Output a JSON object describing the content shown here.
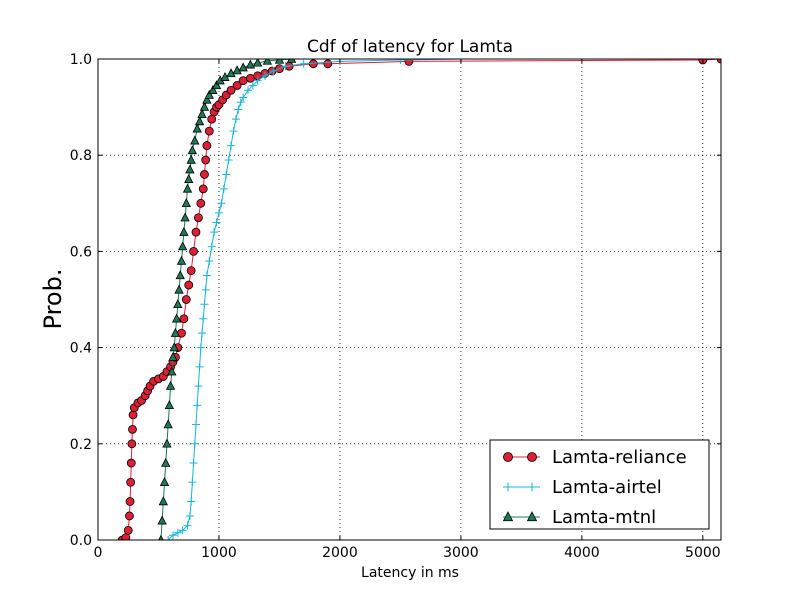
{
  "chart_data": {
    "type": "line",
    "title": "Cdf of latency for Lamta",
    "xlabel": "Latency in ms",
    "ylabel": "Prob.",
    "xlim": [
      0,
      5150
    ],
    "ylim": [
      0.0,
      1.0
    ],
    "xticks": [
      "0",
      "1000",
      "2000",
      "3000",
      "4000",
      "5000"
    ],
    "yticks": [
      "0.0",
      "0.2",
      "0.4",
      "0.6",
      "0.8",
      "1.0"
    ],
    "grid": true,
    "legend_position": "lower-right",
    "series": [
      {
        "name": "Lamta-reliance",
        "color": "#dc2035",
        "marker": "circle",
        "points": [
          [
            200,
            0.0
          ],
          [
            230,
            0.005
          ],
          [
            250,
            0.02
          ],
          [
            260,
            0.05
          ],
          [
            265,
            0.08
          ],
          [
            270,
            0.12
          ],
          [
            275,
            0.16
          ],
          [
            280,
            0.2
          ],
          [
            285,
            0.23
          ],
          [
            290,
            0.26
          ],
          [
            300,
            0.275
          ],
          [
            330,
            0.285
          ],
          [
            360,
            0.29
          ],
          [
            390,
            0.3
          ],
          [
            410,
            0.31
          ],
          [
            430,
            0.32
          ],
          [
            460,
            0.33
          ],
          [
            500,
            0.335
          ],
          [
            540,
            0.34
          ],
          [
            570,
            0.35
          ],
          [
            600,
            0.36
          ],
          [
            620,
            0.37
          ],
          [
            640,
            0.38
          ],
          [
            660,
            0.4
          ],
          [
            690,
            0.43
          ],
          [
            710,
            0.46
          ],
          [
            730,
            0.5
          ],
          [
            750,
            0.53
          ],
          [
            770,
            0.56
          ],
          [
            790,
            0.6
          ],
          [
            810,
            0.64
          ],
          [
            830,
            0.67
          ],
          [
            850,
            0.7
          ],
          [
            870,
            0.73
          ],
          [
            880,
            0.76
          ],
          [
            890,
            0.79
          ],
          [
            900,
            0.82
          ],
          [
            920,
            0.85
          ],
          [
            940,
            0.875
          ],
          [
            960,
            0.89
          ],
          [
            980,
            0.9
          ],
          [
            1000,
            0.905
          ],
          [
            1030,
            0.915
          ],
          [
            1060,
            0.925
          ],
          [
            1100,
            0.935
          ],
          [
            1150,
            0.945
          ],
          [
            1200,
            0.955
          ],
          [
            1260,
            0.96
          ],
          [
            1320,
            0.965
          ],
          [
            1380,
            0.97
          ],
          [
            1440,
            0.975
          ],
          [
            1500,
            0.98
          ],
          [
            1580,
            0.985
          ],
          [
            1780,
            0.99
          ],
          [
            1900,
            0.99
          ],
          [
            2570,
            0.995
          ],
          [
            5000,
            0.998
          ],
          [
            5150,
            1.0
          ]
        ]
      },
      {
        "name": "Lamta-airtel",
        "color": "#19b4d8",
        "marker": "plus",
        "points": [
          [
            580,
            0.0
          ],
          [
            620,
            0.01
          ],
          [
            660,
            0.015
          ],
          [
            700,
            0.02
          ],
          [
            740,
            0.03
          ],
          [
            760,
            0.05
          ],
          [
            770,
            0.08
          ],
          [
            780,
            0.12
          ],
          [
            790,
            0.16
          ],
          [
            800,
            0.2
          ],
          [
            810,
            0.24
          ],
          [
            820,
            0.28
          ],
          [
            830,
            0.32
          ],
          [
            840,
            0.36
          ],
          [
            850,
            0.4
          ],
          [
            860,
            0.43
          ],
          [
            870,
            0.46
          ],
          [
            880,
            0.49
          ],
          [
            890,
            0.52
          ],
          [
            900,
            0.55
          ],
          [
            920,
            0.58
          ],
          [
            940,
            0.61
          ],
          [
            960,
            0.64
          ],
          [
            980,
            0.66
          ],
          [
            1000,
            0.68
          ],
          [
            1020,
            0.7
          ],
          [
            1040,
            0.73
          ],
          [
            1060,
            0.76
          ],
          [
            1080,
            0.79
          ],
          [
            1100,
            0.82
          ],
          [
            1120,
            0.85
          ],
          [
            1140,
            0.875
          ],
          [
            1160,
            0.895
          ],
          [
            1180,
            0.91
          ],
          [
            1200,
            0.92
          ],
          [
            1240,
            0.935
          ],
          [
            1280,
            0.945
          ],
          [
            1320,
            0.955
          ],
          [
            1380,
            0.965
          ],
          [
            1450,
            0.975
          ],
          [
            1550,
            0.985
          ],
          [
            1700,
            0.99
          ],
          [
            2000,
            0.995
          ],
          [
            2500,
            0.998
          ],
          [
            3000,
            1.0
          ],
          [
            5150,
            1.0
          ]
        ]
      },
      {
        "name": "Lamta-mtnl",
        "color": "#1f7a54",
        "marker": "triangle",
        "points": [
          [
            520,
            0.0
          ],
          [
            530,
            0.04
          ],
          [
            540,
            0.08
          ],
          [
            550,
            0.12
          ],
          [
            560,
            0.16
          ],
          [
            570,
            0.2
          ],
          [
            580,
            0.24
          ],
          [
            590,
            0.28
          ],
          [
            600,
            0.32
          ],
          [
            610,
            0.35
          ],
          [
            620,
            0.38
          ],
          [
            630,
            0.4
          ],
          [
            640,
            0.43
          ],
          [
            650,
            0.46
          ],
          [
            660,
            0.49
          ],
          [
            670,
            0.52
          ],
          [
            680,
            0.55
          ],
          [
            690,
            0.58
          ],
          [
            700,
            0.61
          ],
          [
            710,
            0.64
          ],
          [
            720,
            0.67
          ],
          [
            730,
            0.7
          ],
          [
            740,
            0.73
          ],
          [
            750,
            0.75
          ],
          [
            760,
            0.77
          ],
          [
            770,
            0.79
          ],
          [
            780,
            0.81
          ],
          [
            800,
            0.83
          ],
          [
            820,
            0.855
          ],
          [
            840,
            0.87
          ],
          [
            860,
            0.885
          ],
          [
            880,
            0.9
          ],
          [
            900,
            0.915
          ],
          [
            920,
            0.925
          ],
          [
            950,
            0.935
          ],
          [
            980,
            0.945
          ],
          [
            1010,
            0.955
          ],
          [
            1050,
            0.962
          ],
          [
            1100,
            0.97
          ],
          [
            1150,
            0.976
          ],
          [
            1200,
            0.982
          ],
          [
            1260,
            0.988
          ],
          [
            1320,
            0.992
          ],
          [
            1400,
            0.996
          ],
          [
            1500,
            0.998
          ],
          [
            1600,
            1.0
          ]
        ]
      }
    ]
  }
}
